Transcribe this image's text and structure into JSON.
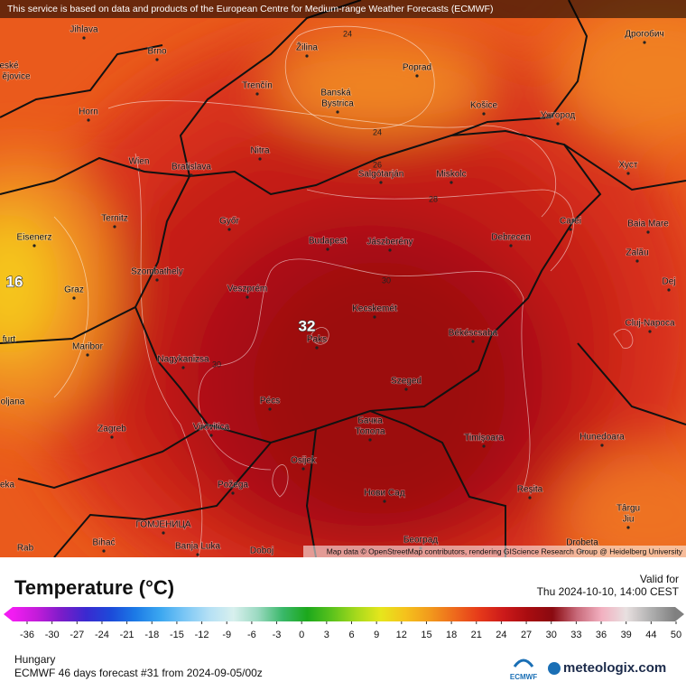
{
  "attribution": "This service is based on data and products of the European Centre for Medium-range Weather Forecasts (ECMWF)",
  "map": {
    "cities": [
      "Jihlava",
      "Brno",
      "Žilina",
      "Poprad",
      "Trenčín",
      "Banská",
      "Bystrica",
      "Košice",
      "Ужгород",
      "Дрогобич",
      "Horn",
      "Wien",
      "Bratislava",
      "Nitra",
      "Salgótarján",
      "Miskolc",
      "Хуст",
      "Ternitz",
      "Győr",
      "Budapest",
      "Jászberény",
      "Debrecen",
      "Carei",
      "Baia Mare",
      "Eisenerz",
      "Szombathely",
      "Veszprém",
      "Zalău",
      "Dej",
      "Graz",
      "Kecskemét",
      "Cluj-Napoca",
      "Maribor",
      "Paks",
      "Békéscsaba",
      "Nagykanizsa",
      "Szeged",
      "Pécs",
      "Zagreb",
      "Virovitica",
      "Бачка",
      "Топола",
      "Timișoara",
      "Hunedoara",
      "Osijek",
      "Požega",
      "Нови Сад",
      "Reșita",
      "Târgu",
      "Jiu",
      "ГОМЈЕНИЦА",
      "Bihać",
      "Banja Luka",
      "Doboj",
      "Београд",
      "Drobeta",
      "eské",
      "ějovice",
      "furt",
      "oljana",
      "eka",
      "Rab"
    ],
    "contour_labels": [
      "24",
      "24",
      "26",
      "28",
      "30",
      "30"
    ],
    "value_labels": [
      "32",
      "16"
    ],
    "credit": "Map data © OpenStreetMap contributors, rendering GIScience Research Group @ Heidelberg University"
  },
  "legend": {
    "title": "Temperature (°C)",
    "valid_label": "Valid for",
    "valid_time": "Thu 2024-10-10, 14:00 CEST",
    "ticks": [
      -36,
      -30,
      -27,
      -24,
      -21,
      -18,
      -15,
      -12,
      -9,
      -6,
      -3,
      0,
      3,
      6,
      9,
      12,
      15,
      18,
      21,
      24,
      27,
      30,
      33,
      36,
      39,
      44,
      50
    ],
    "colors": [
      "#f21cf2",
      "#c21cd9",
      "#7a1cc9",
      "#3a2ad0",
      "#1c4ad9",
      "#1c7ae6",
      "#3aa6f0",
      "#7ac6f5",
      "#b4e0f5",
      "#d8f0ee",
      "#9ad9c0",
      "#3ab86a",
      "#1ca81c",
      "#5ac21c",
      "#a6d91c",
      "#e6e61c",
      "#f5c21c",
      "#f29a1c",
      "#ee6a1c",
      "#e63a1a",
      "#cc1a1a",
      "#a80c10",
      "#8a0a10",
      "#c86a7a",
      "#f2b0c0",
      "#e8e0e0",
      "#b0b0b0",
      "#808080"
    ]
  },
  "footer": {
    "region": "Hungary",
    "forecast": "ECMWF 46 days forecast #31 from  2024-09-05/00z",
    "ecmwf": "ECMWF",
    "brand": "meteologix.com"
  }
}
